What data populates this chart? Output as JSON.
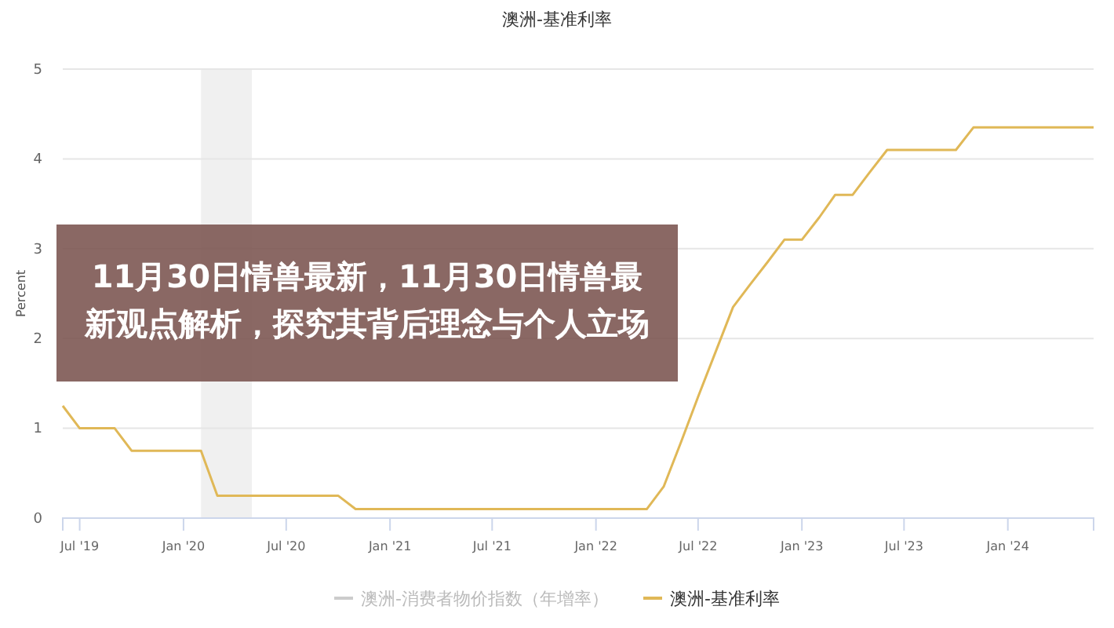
{
  "chart_data": {
    "type": "line",
    "title": "澳洲-基准利率",
    "ylabel": "Percent",
    "annotations": [
      "11月30日情兽最新，11月30日情兽最新观点解析，探究其背后理念与个人立场"
    ],
    "x": [
      "2019-06",
      "2019-07",
      "2019-08",
      "2019-09",
      "2019-10",
      "2019-11",
      "2019-12",
      "2020-01",
      "2020-02",
      "2020-03",
      "2020-04",
      "2020-05",
      "2020-06",
      "2020-07",
      "2020-08",
      "2020-09",
      "2020-10",
      "2020-11",
      "2020-12",
      "2021-01",
      "2021-02",
      "2021-03",
      "2021-04",
      "2021-05",
      "2021-06",
      "2021-07",
      "2021-08",
      "2021-09",
      "2021-10",
      "2021-11",
      "2021-12",
      "2022-01",
      "2022-02",
      "2022-03",
      "2022-04",
      "2022-05",
      "2022-06",
      "2022-07",
      "2022-08",
      "2022-09",
      "2022-10",
      "2022-11",
      "2022-12",
      "2023-01",
      "2023-02",
      "2023-03",
      "2023-04",
      "2023-05",
      "2023-06",
      "2023-07",
      "2023-08",
      "2023-09",
      "2023-10",
      "2023-11",
      "2023-12",
      "2024-01",
      "2024-02",
      "2024-03",
      "2024-04",
      "2024-05",
      "2024-06"
    ],
    "series": [
      {
        "name": "澳洲-消费者物价指数（年增率）",
        "color": "#cccccc",
        "values": [
          null,
          null,
          null,
          null,
          null,
          null,
          null,
          null,
          null,
          null,
          null,
          null,
          null,
          null,
          null,
          null,
          null,
          null,
          null,
          null,
          null,
          null,
          null,
          null,
          null,
          null,
          null,
          null,
          null,
          null,
          null,
          null,
          null,
          null,
          null,
          null,
          null,
          null,
          null,
          null,
          null,
          null,
          null,
          null,
          null,
          null,
          null,
          null,
          null,
          null,
          null,
          null,
          null,
          null,
          null,
          null,
          null,
          null,
          null,
          null,
          null
        ]
      },
      {
        "name": "澳洲-基准利率",
        "color": "#e0b857",
        "values": [
          1.25,
          1,
          1,
          1,
          0.75,
          0.75,
          0.75,
          0.75,
          0.75,
          0.25,
          0.25,
          0.25,
          0.25,
          0.25,
          0.25,
          0.25,
          0.25,
          0.1,
          0.1,
          0.1,
          0.1,
          0.1,
          0.1,
          0.1,
          0.1,
          0.1,
          0.1,
          0.1,
          0.1,
          0.1,
          0.1,
          0.1,
          0.1,
          0.1,
          0.1,
          0.35,
          0.85,
          1.35,
          1.85,
          2.35,
          2.6,
          2.85,
          3.1,
          3.1,
          3.35,
          3.6,
          3.6,
          3.85,
          4.1,
          4.1,
          4.1,
          4.1,
          4.1,
          4.35,
          4.35,
          4.35,
          4.35,
          4.35,
          4.35,
          4.35,
          4.35
        ]
      }
    ],
    "xlim": [
      "2019-06",
      "2024-06"
    ],
    "xticks": [
      {
        "value": "2019-07",
        "label": "Jul '19"
      },
      {
        "value": "2020-01",
        "label": "Jan '20"
      },
      {
        "value": "2020-07",
        "label": "Jul '20"
      },
      {
        "value": "2021-01",
        "label": "Jan '21"
      },
      {
        "value": "2021-07",
        "label": "Jul '21"
      },
      {
        "value": "2022-01",
        "label": "Jan '22"
      },
      {
        "value": "2022-07",
        "label": "Jul '22"
      },
      {
        "value": "2023-01",
        "label": "Jan '23"
      },
      {
        "value": "2023-07",
        "label": "Jul '23"
      },
      {
        "value": "2024-01",
        "label": "Jan '24"
      }
    ],
    "ylim": [
      0,
      5
    ],
    "yticks": [
      0,
      1,
      2,
      3,
      4,
      5
    ],
    "bands": [
      {
        "axis": "x",
        "from": "2020-02",
        "to": "2020-05",
        "color": "#f0f0f0"
      }
    ],
    "grid": "y",
    "legend": "bottom",
    "marker": "none",
    "line_style": "solid"
  }
}
